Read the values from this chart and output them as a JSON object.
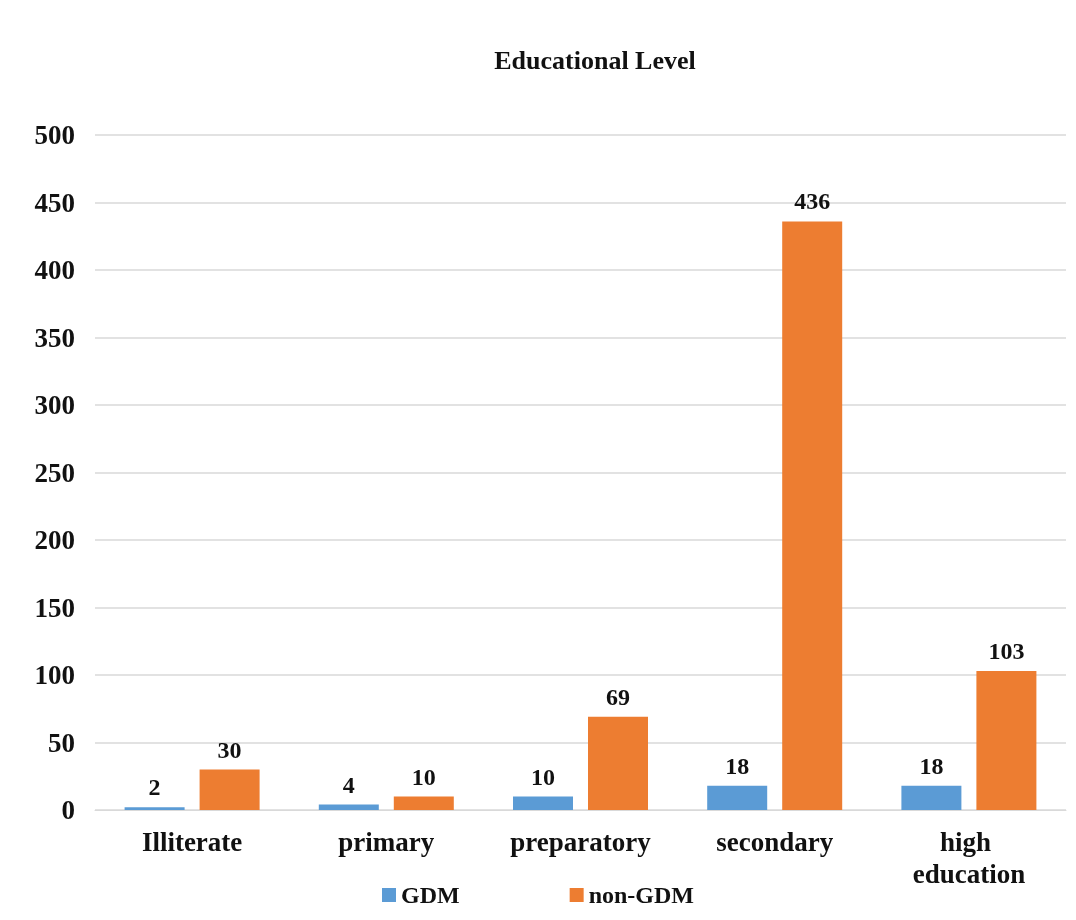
{
  "chart_data": {
    "type": "bar",
    "title": "Educational Level",
    "categories": [
      "Illiterate",
      "primary",
      "preparatory",
      "secondary",
      "high education"
    ],
    "series": [
      {
        "name": "GDM",
        "color": "#5b9bd5",
        "values": [
          2,
          4,
          10,
          18,
          18
        ]
      },
      {
        "name": "non-GDM",
        "color": "#ed7d31",
        "values": [
          30,
          10,
          69,
          436,
          103
        ]
      }
    ],
    "ylim": [
      0,
      500
    ],
    "yticks": [
      0,
      50,
      100,
      150,
      200,
      250,
      300,
      350,
      400,
      450,
      500
    ],
    "grid": "y",
    "legend": "bottom",
    "data_labels": true
  }
}
